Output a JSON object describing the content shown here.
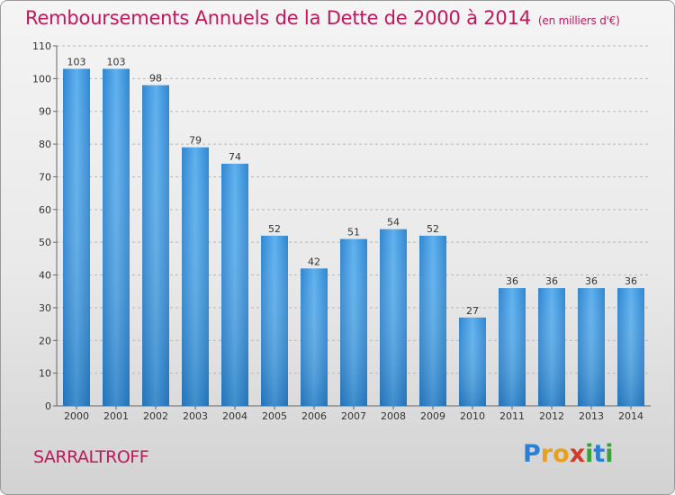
{
  "title": "Remboursements Annuels de la Dette de 2000 à 2014",
  "unit_note": "(en milliers d'€)",
  "commune": "SARRALTROFF",
  "logo": {
    "letters": [
      "P",
      "r",
      "o",
      "x",
      "i",
      "t",
      "i"
    ],
    "colors": [
      "#2a7fd4",
      "#e8a020",
      "#e8a020",
      "#d03a2a",
      "#3aa03a",
      "#2a7fd4",
      "#3aa03a"
    ]
  },
  "chart_data": {
    "type": "bar",
    "categories": [
      "2000",
      "2001",
      "2002",
      "2003",
      "2004",
      "2005",
      "2006",
      "2007",
      "2008",
      "2009",
      "2010",
      "2011",
      "2012",
      "2013",
      "2014"
    ],
    "values": [
      103,
      103,
      98,
      79,
      74,
      52,
      42,
      51,
      54,
      52,
      27,
      36,
      36,
      36,
      36
    ],
    "ylim": [
      0,
      110
    ],
    "yticks": [
      0,
      10,
      20,
      30,
      40,
      50,
      60,
      70,
      80,
      90,
      100,
      110
    ],
    "grid": true,
    "bar_color": "#3d97e0"
  }
}
